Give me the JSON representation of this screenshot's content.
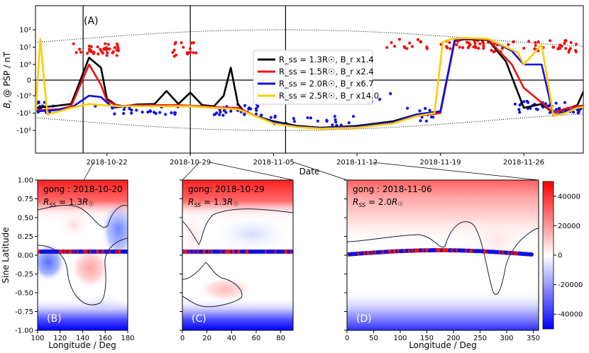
{
  "chart_data": [
    {
      "type": "line",
      "panel_tag": "(A)",
      "xlabel": "Date",
      "ylabel": "B_r @ PSP / nT",
      "yscale": "symlog",
      "xlim": [
        "2018-10-16",
        "2018-12-01"
      ],
      "ylim": [
        -100,
        100
      ],
      "x_ticks": [
        "2018-10-22",
        "2018-10-29",
        "2018-11-05",
        "2018-11-12",
        "2018-11-19",
        "2018-11-26"
      ],
      "y_ticks": [
        "10²",
        "10¹",
        "10⁰",
        "0",
        "-10⁰",
        "-10¹",
        "-10²"
      ],
      "vlines": [
        "2018-10-20",
        "2018-10-29",
        "2018-11-06"
      ],
      "legend_position": "center",
      "legend": [
        {
          "label": "R_ss = 1.3R☉, B_r x1.4",
          "color": "#000000"
        },
        {
          "label": "R_ss = 1.5R☉, B_r x2.4",
          "color": "#ee1111"
        },
        {
          "label": "R_ss = 2.0R☉, B_r x6.7",
          "color": "#1111dd"
        },
        {
          "label": "R_ss = 2.5R☉, B_r x14.0",
          "color": "#ffcc00"
        }
      ],
      "series": [
        {
          "name": "R_ss = 1.3R☉, B_r x1.4",
          "color": "#000000",
          "x": [
            0,
            1.5,
            3,
            4.5,
            5.5,
            6,
            6.8,
            7.5,
            8.5,
            10,
            11,
            12,
            13,
            14,
            15,
            15.8,
            16.4,
            17,
            17.5,
            18.5,
            20,
            22,
            24,
            27,
            30,
            32,
            34,
            35.2,
            36,
            38,
            39.5,
            41,
            42.5,
            43.5,
            44.5,
            45.5,
            46.5
          ],
          "y": [
            -5,
            -4,
            -3,
            2.5,
            0.8,
            -1.5,
            -3.5,
            -4,
            -3.2,
            -3,
            -0.7,
            -3,
            -0.8,
            -3.5,
            -4,
            -1,
            0.8,
            -3,
            -8,
            -15,
            -30,
            -55,
            -70,
            -55,
            -30,
            -12,
            -8,
            22,
            28,
            26,
            1.5,
            -5,
            -3,
            -10,
            -6,
            -3.5,
            0.1
          ]
        },
        {
          "name": "R_ss = 1.5R☉, B_r x2.4",
          "color": "#ee1111",
          "x": [
            0,
            2,
            3,
            4.5,
            5.5,
            6,
            7,
            8.5,
            10,
            12,
            14,
            16,
            17,
            18.5,
            20,
            22,
            24,
            27,
            30,
            32,
            34,
            35.2,
            36,
            38,
            40,
            41,
            42.5,
            43.5,
            44.5,
            45.5,
            46.5
          ],
          "y": [
            -7,
            -6,
            -4,
            1,
            -0.3,
            -2,
            -4,
            -3.5,
            -3.5,
            -3.5,
            -4,
            -5,
            -5,
            -15,
            -35,
            -60,
            -75,
            -60,
            -35,
            -15,
            -10,
            22,
            30,
            28,
            1,
            -0.5,
            -2.5,
            -10,
            -5.5,
            -4,
            -3.5
          ]
        },
        {
          "name": "R_ss = 2.0R☉, B_r x6.7",
          "color": "#1111dd",
          "x": [
            0,
            1.5,
            3,
            4.5,
            5.5,
            6.5,
            7.5,
            9,
            11,
            13,
            15,
            17,
            18.5,
            20,
            22,
            24,
            27,
            30,
            32,
            34,
            35.2,
            36,
            38,
            40,
            41,
            42.5,
            43.5,
            44.5,
            45.5,
            46.5
          ],
          "y": [
            -8,
            -7,
            -5,
            -1,
            -1.2,
            -5,
            -4,
            -3.8,
            -4,
            -4,
            -5,
            -6,
            -15,
            -35,
            -60,
            -75,
            -60,
            -35,
            -12,
            -8,
            26,
            32,
            30,
            6,
            1,
            1,
            -15,
            -8,
            -5,
            -4
          ]
        },
        {
          "name": "R_ss = 2.5R☉, B_r x14.0",
          "color": "#ffcc00",
          "x": [
            0,
            0.4,
            1,
            2,
            3,
            4.5,
            5.5,
            7,
            9,
            11,
            13,
            15,
            17,
            18.5,
            20,
            22,
            24,
            27,
            30,
            32,
            33.5,
            34.2,
            35,
            36,
            38,
            40.5,
            41,
            42.5,
            43.5,
            44.5,
            45.5,
            46.5
          ],
          "y": [
            -10,
            30,
            -12,
            -8,
            -5,
            -3,
            -3.5,
            -4,
            -4,
            -4,
            -4,
            -5,
            -6,
            -15,
            -40,
            -65,
            -80,
            -70,
            -40,
            -15,
            -10,
            20,
            30,
            34,
            30,
            5,
            1,
            14,
            -15,
            -10,
            -5,
            -4
          ]
        }
      ],
      "observations": {
        "positive_dots_color": "#ee1111",
        "negative_dots_color": "#1111dd",
        "envelope": "dotted"
      }
    },
    {
      "type": "heatmap",
      "panel_tag": "(B)",
      "annotation_date": "gong : 2018-10-20",
      "annotation_rss": "R_SS = 1.3R☉",
      "xlabel": "Longitude / Deg",
      "ylabel": "Sine Latitude",
      "xlim": [
        100,
        180
      ],
      "ylim": [
        -1,
        1
      ],
      "x_ticks": [
        "100",
        "120",
        "140",
        "160",
        "180"
      ],
      "y_ticks": [
        "1.00",
        "0.75",
        "0.50",
        "0.25",
        "0.00",
        "-0.25",
        "-0.50",
        "-0.75",
        "-1.00"
      ]
    },
    {
      "type": "heatmap",
      "panel_tag": "(C)",
      "annotation_date": "gong: 2018-10-29",
      "annotation_rss": "R_SS = 1.3R☉",
      "xlabel": "",
      "xlim": [
        0,
        90
      ],
      "ylim": [
        -1,
        1
      ],
      "x_ticks": [
        "0",
        "20",
        "40",
        "60",
        "80"
      ]
    },
    {
      "type": "heatmap",
      "panel_tag": "(D)",
      "annotation_date": "gong : 2018-11-06",
      "annotation_rss": "R_SS = 2.0R☉",
      "xlabel": "Longitude / Deg",
      "xlim": [
        0,
        360
      ],
      "ylim": [
        -1,
        1
      ],
      "x_ticks": [
        "0",
        "50",
        "100",
        "150",
        "200",
        "250",
        "300",
        "350"
      ],
      "colorbar": {
        "ticks": [
          "40000",
          "20000",
          "0",
          "-20000",
          "-40000"
        ],
        "range": [
          -50000,
          50000
        ],
        "colors": [
          "#0000ff",
          "#ffffff",
          "#ff0000"
        ]
      }
    }
  ]
}
